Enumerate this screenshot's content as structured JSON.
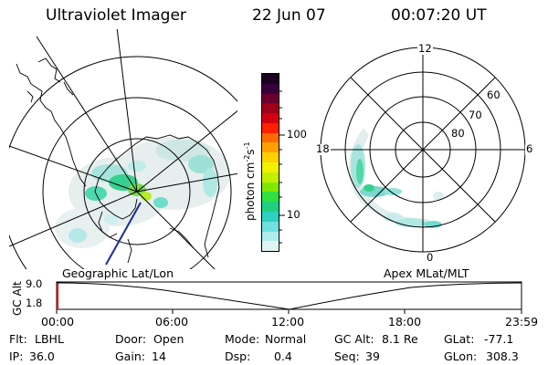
{
  "header": {
    "title": "Ultraviolet Imager",
    "date": "22 Jun 07",
    "time": "00:07:20 UT"
  },
  "geo_panel": {
    "label": "Geographic Lat/Lon"
  },
  "apex_panel": {
    "label": "Apex MLat/MLT",
    "mlt_labels": [
      "12",
      "18",
      "6",
      "0"
    ],
    "mlat_labels": [
      "60",
      "70",
      "80"
    ]
  },
  "colorbar": {
    "unit_label": "photon cm",
    "unit_sup1": "-2",
    "unit_mid": "s",
    "unit_sup2": "-1",
    "ticks": [
      "100",
      "10"
    ],
    "colors": [
      "#1a0020",
      "#3a003a",
      "#6a0030",
      "#a00018",
      "#d00010",
      "#ff2000",
      "#ff6a00",
      "#ffa000",
      "#ffd000",
      "#f0f000",
      "#c0f000",
      "#80e800",
      "#30e040",
      "#20d080",
      "#30d0c0",
      "#70e0e0",
      "#b0ecec",
      "#e0f4f4"
    ]
  },
  "timeline": {
    "y_axis_label": "GC Alt",
    "y_ticks": [
      "9.0",
      "1.8"
    ],
    "x_ticks": [
      "00:00",
      "06:00",
      "12:00",
      "18:00",
      "23:59"
    ]
  },
  "status": {
    "row1": [
      {
        "key": "Flt:",
        "value": "LBHL"
      },
      {
        "key": "Door:",
        "value": "Open"
      },
      {
        "key": "Mode:",
        "value": "Normal"
      },
      {
        "key": "GC Alt:",
        "value": "8.1 Re"
      },
      {
        "key": "GLat:",
        "value": "-77.1"
      }
    ],
    "row2": [
      {
        "key": "IP:",
        "value": "36.0"
      },
      {
        "key": "Gain:",
        "value": "14"
      },
      {
        "key": "Dsp:",
        "value": "0.4"
      },
      {
        "key": "Seq:",
        "value": "39"
      },
      {
        "key": "GLon:",
        "value": "308.3"
      }
    ]
  }
}
